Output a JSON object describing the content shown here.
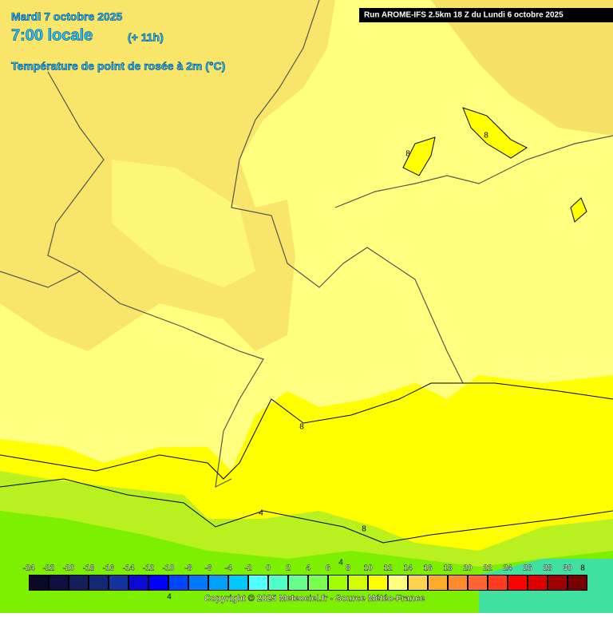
{
  "header": {
    "date": "Mardi 7 octobre 2025",
    "time": "7:00 locale",
    "lead": "(+ 11h)",
    "variable": "Température de point de rosée à 2m (°C)",
    "run": "Run AROME-IFS 2.5km 18 Z du Lundi 6 octobre 2025"
  },
  "contour_labels": [
    "8",
    "8",
    "8",
    "8",
    "4",
    "4",
    "4",
    "8"
  ],
  "legend": {
    "values": [
      -24,
      -22,
      -20,
      -18,
      -16,
      -14,
      -12,
      -10,
      -8,
      -6,
      -4,
      -2,
      0,
      2,
      4,
      6,
      8,
      10,
      12,
      14,
      16,
      18,
      20,
      22,
      24,
      26,
      28,
      30
    ],
    "colors": [
      "#0a0a28",
      "#101040",
      "#141e5a",
      "#142878",
      "#1432a0",
      "#0a0ad2",
      "#0000ff",
      "#0046ff",
      "#0078ff",
      "#00a0ff",
      "#00c8ff",
      "#50ffff",
      "#50ffc8",
      "#64ff8c",
      "#78ff50",
      "#a0ff00",
      "#d2ff00",
      "#ffff00",
      "#ffff80",
      "#ffd250",
      "#ffaa28",
      "#ff8c28",
      "#ff6432",
      "#ff3c1e",
      "#ff0000",
      "#dc0000",
      "#a00000",
      "#780000"
    ]
  },
  "footer": {
    "copyright": "Copyright © 2025 Meteociel.fr - Source Météo-France"
  }
}
